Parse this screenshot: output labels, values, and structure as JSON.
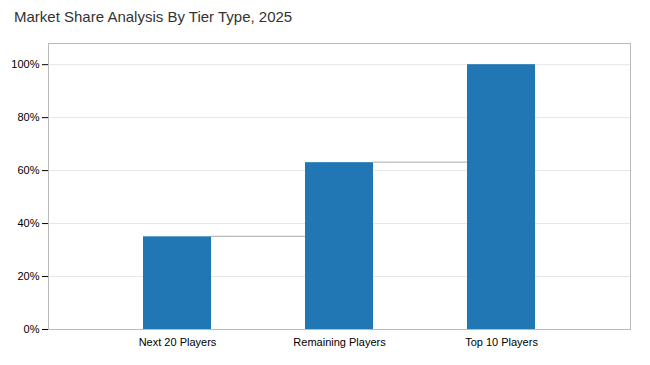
{
  "chart_data": {
    "type": "bar",
    "title": "Market Share Analysis By Tier Type, 2025",
    "categories": [
      "Next 20 Players",
      "Remaining Players",
      "Top 10 Players"
    ],
    "values": [
      35,
      63,
      100
    ],
    "color": "#2077b4",
    "ylim": [
      0,
      108
    ],
    "yticks": [
      {
        "value": 0,
        "label": "0%"
      },
      {
        "value": 20,
        "label": "20%"
      },
      {
        "value": 40,
        "label": "40%"
      },
      {
        "value": 60,
        "label": "60%"
      },
      {
        "value": 80,
        "label": "80%"
      },
      {
        "value": 100,
        "label": "100%"
      }
    ],
    "grid": true
  }
}
